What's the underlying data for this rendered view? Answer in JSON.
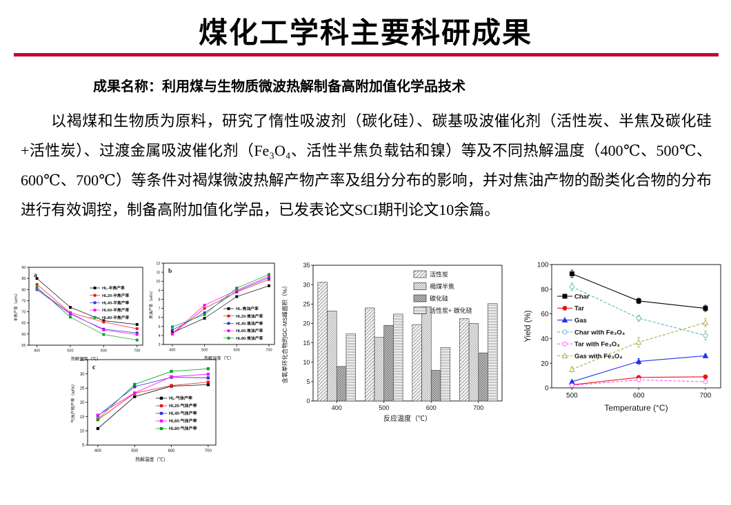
{
  "page": {
    "title": "煤化工学科主要科研成果",
    "subtitle": "成果名称：利用煤与生物质微波热解制备高附加值化学品技术",
    "paragraph": "以褐煤和生物质为原料，研究了惰性吸波剂（碳化硅）、碳基吸波催化剂（活性炭、半焦及碳化硅+活性炭）、过渡金属吸波催化剂（Fe₃O₄、活性半焦负载钴和镍）等及不同热解温度（400℃、500℃、600℃、700℃）等条件对褐煤微波热解产物产率及组分分布的影响，并对焦油产物的酚类化合物的分布进行有效调控，制备高附加值化学品，已发表论文SCI期刊论文10余篇。",
    "accent_color": "#c00a2e"
  },
  "chart_data": [
    {
      "type": "line",
      "panel_label": "a",
      "x": [
        400,
        500,
        600,
        700
      ],
      "xlabel": "热解温度（℃）",
      "ylabel": "半焦产率（wt%）",
      "ylim": [
        55,
        90
      ],
      "ystep": 5,
      "grid": false,
      "legend_position": "right-upper-inside",
      "series": [
        {
          "name": "HL-半焦产率",
          "color": "#000000",
          "marker": "square",
          "values": [
            85.0,
            72.0,
            66.0,
            64.3
          ]
        },
        {
          "name": "HL20-半焦产率",
          "color": "#ee1111",
          "marker": "square",
          "values": [
            82.3,
            69.6,
            65.4,
            62.4
          ]
        },
        {
          "name": "HL40-半焦产率",
          "color": "#3030dd",
          "marker": "square",
          "values": [
            80.0,
            69.0,
            62.2,
            60.5
          ]
        },
        {
          "name": "HL60-半焦产率",
          "color": "#ff00ff",
          "marker": "square",
          "values": [
            80.4,
            69.4,
            61.8,
            59.8
          ]
        },
        {
          "name": "HL80-半焦产率",
          "color": "#00a020",
          "marker": "square",
          "values": [
            81.0,
            67.6,
            59.8,
            57.3
          ]
        }
      ]
    },
    {
      "type": "line",
      "panel_label": "b",
      "x": [
        400,
        500,
        600,
        700
      ],
      "xlabel": "热解温度（℃）",
      "ylabel": "焦油产率（wt%）",
      "ylim": [
        3,
        12
      ],
      "ystep": 1,
      "grid": false,
      "legend_position": "right-lower-inside",
      "series": [
        {
          "name": "HL-焦油产率",
          "color": "#000000",
          "marker": "square",
          "values": [
            4.3,
            5.9,
            8.3,
            9.5
          ]
        },
        {
          "name": "HL20-焦油产率",
          "color": "#ee1111",
          "marker": "square",
          "values": [
            4.15,
            7.0,
            8.8,
            10.2
          ]
        },
        {
          "name": "HL40-焦油产率",
          "color": "#3030dd",
          "marker": "square",
          "values": [
            4.6,
            6.5,
            8.9,
            10.4
          ]
        },
        {
          "name": "HL60-焦油产率",
          "color": "#ff00ff",
          "marker": "square",
          "values": [
            4.2,
            7.35,
            9.0,
            10.55
          ]
        },
        {
          "name": "HL80-焦油产率",
          "color": "#00a020",
          "marker": "square",
          "values": [
            4.95,
            6.3,
            9.25,
            10.75
          ]
        }
      ]
    },
    {
      "type": "line",
      "panel_label": "c",
      "x": [
        400,
        500,
        600,
        700
      ],
      "xlabel": "热解温度（℃）",
      "ylabel": "气体产物产率（wt%）",
      "ylim": [
        5,
        35
      ],
      "ystep": 5,
      "grid": false,
      "legend_position": "right-middle-inside",
      "series": [
        {
          "name": "HL-气体产率",
          "color": "#000000",
          "marker": "square",
          "values": [
            10.8,
            22.0,
            25.7,
            26.2
          ]
        },
        {
          "name": "HL20-气体产率",
          "color": "#ee1111",
          "marker": "square",
          "values": [
            13.9,
            23.2,
            25.9,
            27.1
          ]
        },
        {
          "name": "HL40-气体产率",
          "color": "#3030dd",
          "marker": "square",
          "values": [
            15.3,
            25.5,
            28.8,
            28.6
          ]
        },
        {
          "name": "HL60-气体产率",
          "color": "#ff00ff",
          "marker": "square",
          "values": [
            15.5,
            23.3,
            29.0,
            29.9
          ]
        },
        {
          "name": "HL80-气体产率",
          "color": "#00a020",
          "marker": "square",
          "values": [
            14.1,
            26.3,
            30.9,
            31.8
          ]
        }
      ]
    },
    {
      "type": "bar",
      "categories": [
        "400",
        "500",
        "600",
        "700"
      ],
      "xlabel": "反应温度（℃）",
      "ylabel": "含氧单环化合物的GC-MS峰面积（%）",
      "ylim": [
        0,
        35
      ],
      "ystep": 5,
      "grid": false,
      "legend_position": "top-right-inside",
      "series": [
        {
          "name": "活性炭",
          "pattern": "diag1",
          "values": [
            30.6,
            24.0,
            19.7,
            21.2
          ]
        },
        {
          "name": "褐煤半焦",
          "pattern": "diag2",
          "values": [
            23.2,
            16.4,
            24.3,
            20.0
          ]
        },
        {
          "name": "碳化硅",
          "pattern": "cross",
          "values": [
            8.9,
            19.5,
            7.9,
            12.4
          ]
        },
        {
          "name": "活性炭+ 碳化硅",
          "pattern": "horiz",
          "values": [
            17.3,
            22.4,
            13.8,
            25.1
          ]
        }
      ]
    },
    {
      "type": "line",
      "x": [
        500,
        600,
        700
      ],
      "xlabel": "Temperature (°C)",
      "ylabel": "Yield (%)",
      "ylim": [
        0,
        100
      ],
      "ystep": 20,
      "grid": false,
      "legend_position": "left-middle-inside",
      "series": [
        {
          "name": "Char",
          "color": "#000000",
          "marker": "square",
          "values": [
            92.5,
            70.5,
            64.5
          ],
          "err": [
            3,
            2.2,
            2.5
          ]
        },
        {
          "name": "Tar",
          "color": "#ee1111",
          "marker": "circle",
          "values": [
            2.5,
            8.5,
            9.0
          ],
          "err": [
            0.8,
            1.2,
            1.0
          ]
        },
        {
          "name": "Gas",
          "color": "#2233ee",
          "marker": "triangle",
          "values": [
            5.0,
            21.5,
            26.0
          ],
          "err": [
            1.2,
            2.3,
            1.5
          ]
        },
        {
          "name": "Char with Fe₃O₄",
          "color": "#58b6b8",
          "marker": "circle-open",
          "dashed": true,
          "values": [
            82.0,
            56.5,
            42.5
          ],
          "err": [
            3.0,
            2.5,
            3.5
          ]
        },
        {
          "name": "Tar with Fe₃O₄",
          "color": "#ff55ff",
          "marker": "circle-open",
          "dashed": true,
          "values": [
            2.0,
            6.5,
            5.0
          ],
          "err": [
            0.8,
            1.2,
            1.2
          ]
        },
        {
          "name": "Gas with Fe₃O₄",
          "color": "#a9a945",
          "marker": "triangle-open",
          "dashed": true,
          "values": [
            15.0,
            37.0,
            53.0
          ],
          "err": [
            2.0,
            4.0,
            3.2
          ]
        }
      ]
    }
  ]
}
